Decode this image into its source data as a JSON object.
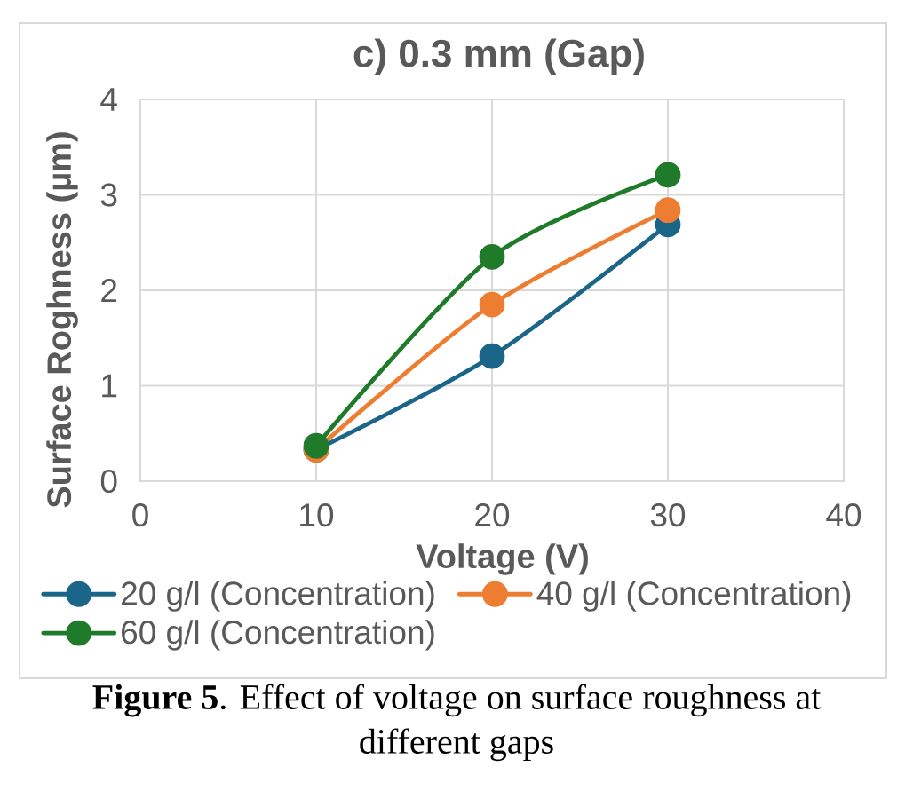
{
  "chart_data": {
    "type": "line",
    "title": "c) 0.3 mm (Gap)",
    "xlabel": "Voltage (V)",
    "ylabel": "Surface Roghness (µm)",
    "x": [
      10,
      20,
      30
    ],
    "series": [
      {
        "name": "20 g/l (Concentration)",
        "color": "#1b6589",
        "values": [
          0.33,
          1.31,
          2.69
        ]
      },
      {
        "name": "40 g/l (Concentration)",
        "color": "#ed7d31",
        "values": [
          0.33,
          1.85,
          2.84
        ]
      },
      {
        "name": "60 g/l (Concentration)",
        "color": "#1f7a2a",
        "values": [
          0.37,
          2.35,
          3.21
        ]
      }
    ],
    "xlim": [
      0,
      40
    ],
    "xticks": [
      0,
      10,
      20,
      30,
      40
    ],
    "ylim": [
      0,
      4
    ],
    "yticks": [
      0,
      1,
      2,
      3,
      4
    ],
    "grid": true,
    "legend": "bottom",
    "marker": "circle",
    "line_style": "solid",
    "annotations": [
      "**Figure 5**. Effect of voltage on surface roughness at different gaps"
    ]
  }
}
